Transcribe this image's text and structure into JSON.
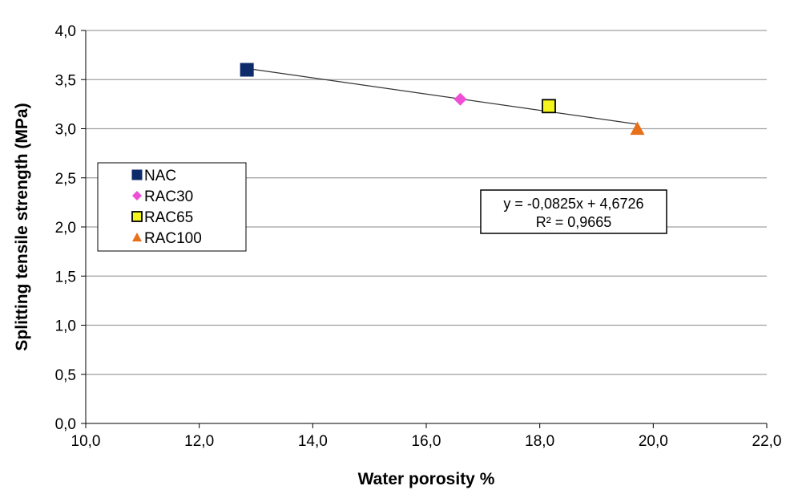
{
  "chart_data": {
    "type": "scatter",
    "title": "",
    "xlabel": "Water porosity %",
    "ylabel": "Splitting tensile strength (MPa)",
    "xlim": [
      10,
      22
    ],
    "ylim": [
      0,
      4
    ],
    "xticks": [
      "10,0",
      "12,0",
      "14,0",
      "16,0",
      "18,0",
      "20,0",
      "22,0"
    ],
    "yticks": [
      "0,0",
      "0,5",
      "1,0",
      "1,5",
      "2,0",
      "2,5",
      "3,0",
      "3,5",
      "4,0"
    ],
    "grid": "horizontal",
    "legend_position": "left-middle",
    "series": [
      {
        "name": "NAC",
        "x": [
          12.84
        ],
        "y": [
          3.6
        ],
        "marker": "square",
        "color": "#0d2b6b"
      },
      {
        "name": "RAC30",
        "x": [
          16.6
        ],
        "y": [
          3.3
        ],
        "marker": "diamond",
        "color": "#ee4fd6"
      },
      {
        "name": "RAC65",
        "x": [
          18.16
        ],
        "y": [
          3.23
        ],
        "marker": "square-outlined",
        "color": "#f5f51e"
      },
      {
        "name": "RAC100",
        "x": [
          19.72
        ],
        "y": [
          3.0
        ],
        "marker": "triangle",
        "color": "#e8701a"
      }
    ],
    "trendline": {
      "type": "linear",
      "slope": -0.0825,
      "intercept": 4.6726,
      "x_range": [
        12.84,
        19.72
      ],
      "equation": "y = -0,0825x + 4,6726",
      "r2": "R² = 0,9665"
    }
  }
}
